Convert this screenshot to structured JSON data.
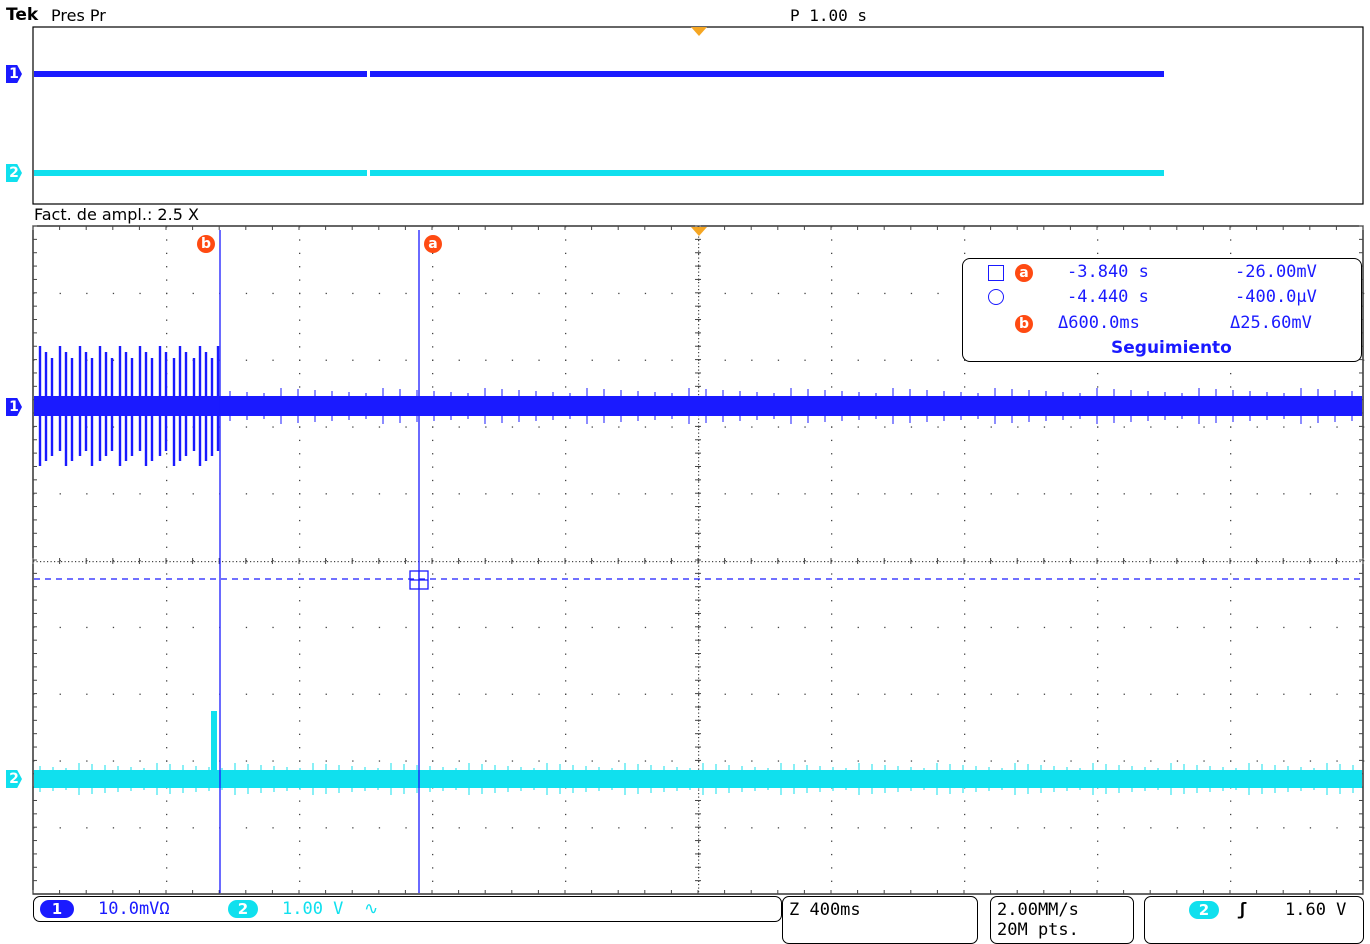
{
  "header": {
    "brand": "Tek",
    "mode": "Pres Pr",
    "position": "P 1.00 s"
  },
  "zoom": {
    "factor_label": "Fact. de ampl.: 2.5 X"
  },
  "cursors": {
    "a_label": "a",
    "b_label": "b"
  },
  "channels": [
    {
      "id": "1",
      "color": "#1a1aff"
    },
    {
      "id": "2",
      "color": "#10e0ee"
    }
  ],
  "readout": {
    "row_a": {
      "time": "-3.840 s",
      "value": "-26.00mV"
    },
    "row_o": {
      "time": "-4.440 s",
      "value": "-400.0µV"
    },
    "row_b": {
      "time": "Δ600.0ms",
      "value": "Δ25.60mV"
    },
    "mode": "Seguimiento"
  },
  "status": {
    "ch1_id": "1",
    "ch1_scale": "10.0mVΩ",
    "ch2_id": "2",
    "ch2_scale": "1.00 V",
    "ch2_coupling": "∿",
    "timebase": "Z 400ms",
    "sample_rate": "2.00MM/s",
    "record_length": "20M pts.",
    "trig_ch": "2",
    "trig_slope": "ʃ",
    "trig_level": "1.60 V"
  }
}
